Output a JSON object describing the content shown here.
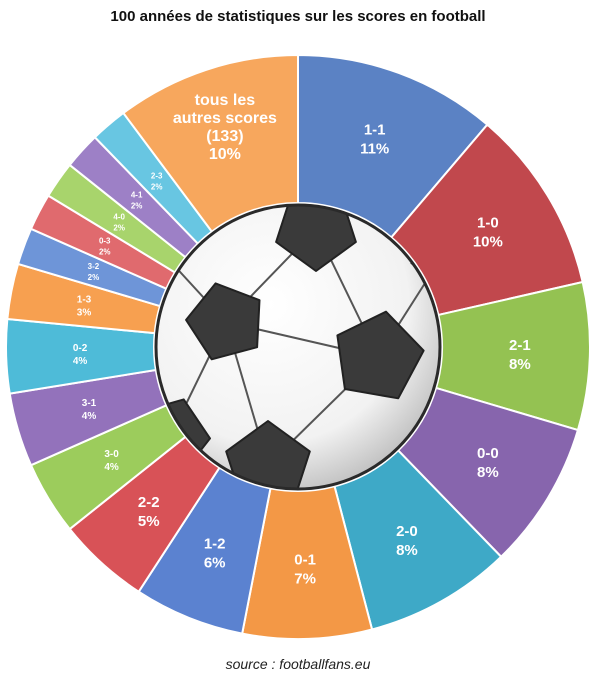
{
  "chart_data": {
    "type": "pie",
    "title": "100 années de statistiques sur les scores en football",
    "source": "source : footballfans.eu",
    "slices": [
      {
        "label": "1-1",
        "value": 11,
        "pct": "11%",
        "color": "#5b82c4"
      },
      {
        "label": "1-0",
        "value": 10,
        "pct": "10%",
        "color": "#c1484d"
      },
      {
        "label": "2-1",
        "value": 8,
        "pct": "8%",
        "color": "#94c252"
      },
      {
        "label": "0-0",
        "value": 8,
        "pct": "8%",
        "color": "#8765ad"
      },
      {
        "label": "2-0",
        "value": 8,
        "pct": "8%",
        "color": "#3ea9c7"
      },
      {
        "label": "0-1",
        "value": 7,
        "pct": "7%",
        "color": "#f39846"
      },
      {
        "label": "1-2",
        "value": 6,
        "pct": "6%",
        "color": "#5b82d0"
      },
      {
        "label": "2-2",
        "value": 5,
        "pct": "5%",
        "color": "#d85257"
      },
      {
        "label": "3-0",
        "value": 4,
        "pct": "4%",
        "color": "#9ccc5c"
      },
      {
        "label": "3-1",
        "value": 4,
        "pct": "4%",
        "color": "#9372bb"
      },
      {
        "label": "0-2",
        "value": 4,
        "pct": "4%",
        "color": "#4ebbd8"
      },
      {
        "label": "1-3",
        "value": 3,
        "pct": "3%",
        "color": "#f7a050"
      },
      {
        "label": "3-2",
        "value": 2,
        "pct": "2%",
        "color": "#6e95d8"
      },
      {
        "label": "0-3",
        "value": 2,
        "pct": "2%",
        "color": "#e06a6e"
      },
      {
        "label": "4-0",
        "value": 2,
        "pct": "2%",
        "color": "#a8d46c"
      },
      {
        "label": "4-1",
        "value": 2,
        "pct": "2%",
        "color": "#9d80c6"
      },
      {
        "label": "2-3",
        "value": 2,
        "pct": "2%",
        "color": "#68c6e2"
      },
      {
        "label": "tous les autres scores (133)",
        "value": 10,
        "pct": "10%",
        "color": "#f7a75d"
      }
    ]
  }
}
